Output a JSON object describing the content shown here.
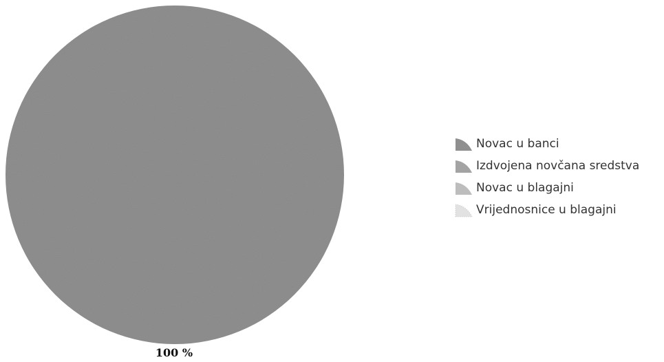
{
  "chart_data": {
    "type": "pie",
    "title": "",
    "categories": [
      "Novac u banci",
      "Izdvojena novčana sredstva",
      "Novac u blagajni",
      "Vrijednosnice u blagajni"
    ],
    "values": [
      100,
      0,
      0,
      0
    ],
    "slice_labels": [
      "100 %"
    ],
    "colors": [
      "#8f8f8f",
      "#a3a3a3",
      "#bdbdbd",
      "#e2e2e2"
    ],
    "legend_position": "right"
  }
}
